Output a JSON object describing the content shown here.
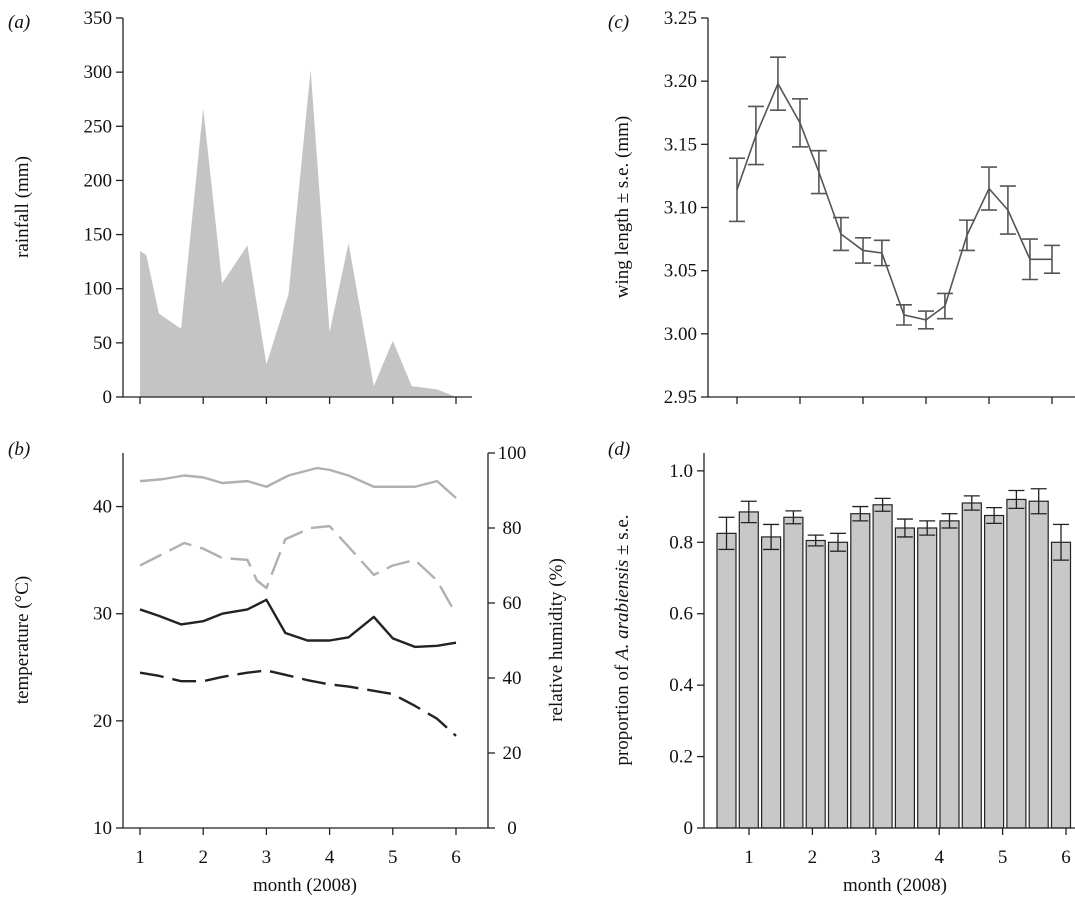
{
  "chart_data": [
    {
      "panel_label": "(a)",
      "type": "area",
      "ylabel": "rainfall (mm)",
      "xlabel": "",
      "ylim": [
        0,
        350
      ],
      "yticks": [
        0,
        50,
        100,
        150,
        200,
        250,
        300,
        350
      ],
      "xlim": [
        0.6,
        6.6
      ],
      "xticks": [
        1,
        2,
        3,
        4,
        5,
        6
      ],
      "x": [
        1,
        1.1,
        1.3,
        1.65,
        2,
        2.3,
        2.7,
        3,
        3.35,
        3.7,
        4,
        4.3,
        4.7,
        5,
        5.3,
        5.7,
        6
      ],
      "series": [
        {
          "values": [
            135,
            131,
            77,
            63,
            267,
            105,
            140,
            30,
            95,
            302,
            60,
            142,
            10,
            52,
            10,
            7,
            0
          ],
          "color": "#c4c4c4"
        }
      ]
    },
    {
      "panel_label": "(b)",
      "type": "line",
      "xlabel": "month (2008)",
      "ylabel": "temperature (°C)",
      "ylabel_right": "relative humidity (%)",
      "ylim": [
        10,
        45
      ],
      "yticks": [
        10,
        20,
        30,
        40
      ],
      "ylim_right": [
        0,
        100
      ],
      "yticks_right": [
        0,
        20,
        40,
        60,
        80,
        100
      ],
      "xlim": [
        0.6,
        6.6
      ],
      "xticks": [
        1,
        2,
        3,
        4,
        5,
        6
      ],
      "series": [
        {
          "axis": "right",
          "color": "#b0b0b0",
          "style": "solid",
          "x": [
            1,
            1.35,
            1.7,
            2,
            2.3,
            2.7,
            3,
            3.35,
            3.8,
            4,
            4.3,
            4.7,
            5,
            5.35,
            5.7,
            6
          ],
          "values": [
            92.5,
            93,
            94,
            93.5,
            92,
            92.5,
            91,
            94,
            96,
            95.5,
            94,
            91,
            91,
            91,
            92.5,
            88
          ]
        },
        {
          "axis": "right",
          "color": "#b0b0b0",
          "style": "dashed",
          "x": [
            1,
            1.35,
            1.7,
            2,
            2.3,
            2.7,
            2.85,
            3,
            3.3,
            3.7,
            4,
            4.3,
            4.7,
            5,
            5.35,
            5.7,
            6
          ],
          "values": [
            70,
            73,
            76,
            74.5,
            72,
            71.5,
            66,
            64,
            77,
            80,
            80.5,
            75,
            67.5,
            70,
            71.5,
            66,
            57
          ]
        },
        {
          "axis": "left",
          "color": "#222222",
          "style": "solid",
          "x": [
            1,
            1.3,
            1.65,
            2,
            2.3,
            2.7,
            3,
            3.3,
            3.65,
            4,
            4.3,
            4.7,
            5,
            5.35,
            5.7,
            6
          ],
          "values": [
            30.4,
            29.8,
            29.0,
            29.3,
            30.0,
            30.4,
            31.3,
            28.2,
            27.5,
            27.5,
            27.8,
            29.7,
            27.7,
            26.9,
            27.0,
            27.3
          ]
        },
        {
          "axis": "left",
          "color": "#222222",
          "style": "dashed",
          "x": [
            1,
            1.3,
            1.65,
            2,
            2.3,
            2.7,
            3,
            3.3,
            3.65,
            4,
            4.3,
            4.7,
            5,
            5.35,
            5.7,
            6
          ],
          "values": [
            24.5,
            24.2,
            23.7,
            23.7,
            24.1,
            24.5,
            24.7,
            24.3,
            23.8,
            23.4,
            23.2,
            22.8,
            22.5,
            21.4,
            20.2,
            18.6
          ]
        }
      ]
    },
    {
      "panel_label": "(c)",
      "type": "line",
      "ylabel": "wing length ± s.e. (mm)",
      "xlabel": "",
      "ylim": [
        2.95,
        3.25
      ],
      "yticks": [
        "2.95",
        "3.00",
        "3.05",
        "3.10",
        "3.15",
        "3.20",
        "3.25"
      ],
      "xlim": [
        0.6,
        6.6
      ],
      "xticks": [
        1,
        2,
        3,
        4,
        5,
        6
      ],
      "color": "#555555",
      "x": [
        0.65,
        0.95,
        1.3,
        1.65,
        1.95,
        2.3,
        2.65,
        2.95,
        3.3,
        3.65,
        3.95,
        4.3,
        4.65,
        4.95,
        5.3,
        5.65
      ],
      "values": [
        3.114,
        3.157,
        3.198,
        3.167,
        3.128,
        3.079,
        3.066,
        3.064,
        3.015,
        3.011,
        3.022,
        3.078,
        3.115,
        3.098,
        3.059,
        3.059
      ],
      "errors": [
        0.025,
        0.023,
        0.021,
        0.019,
        0.017,
        0.013,
        0.01,
        0.01,
        0.008,
        0.007,
        0.01,
        0.012,
        0.017,
        0.019,
        0.016,
        0.011
      ]
    },
    {
      "panel_label": "(d)",
      "type": "bar",
      "xlabel": "month (2008)",
      "ylabel_prefix": "proportion of ",
      "ylabel_italic": "A. arabiensis",
      "ylabel_suffix": " ± s.e.",
      "ylim": [
        0,
        1.05
      ],
      "yticks": [
        "0",
        "0.2",
        "0.4",
        "0.6",
        "0.8",
        "1.0"
      ],
      "xlim": [
        0.6,
        6.6
      ],
      "xticks": [
        1,
        2,
        3,
        4,
        5,
        6
      ],
      "bar_color": "#c8c8c8",
      "x": [
        0.75,
        1.0,
        1.25,
        1.5,
        1.75,
        2.0,
        2.25,
        2.5,
        2.75,
        3.0,
        3.25,
        3.5,
        3.75,
        4.0,
        4.25,
        4.5,
        4.75,
        5.0,
        5.25,
        5.5,
        5.75
      ],
      "values": [
        0.825,
        0.885,
        0.815,
        0.87,
        0.805,
        0.8,
        0.88,
        0.905,
        0.84,
        0.84,
        0.86,
        0.91,
        0.875,
        0.92,
        0.915,
        0.8,
        null,
        null,
        null,
        null,
        null
      ],
      "errors": [
        0.045,
        0.03,
        0.035,
        0.018,
        0.015,
        0.025,
        0.02,
        0.018,
        0.025,
        0.02,
        0.02,
        0.02,
        0.022,
        0.025,
        0.035,
        0.05,
        null,
        null,
        null,
        null,
        null
      ]
    }
  ]
}
